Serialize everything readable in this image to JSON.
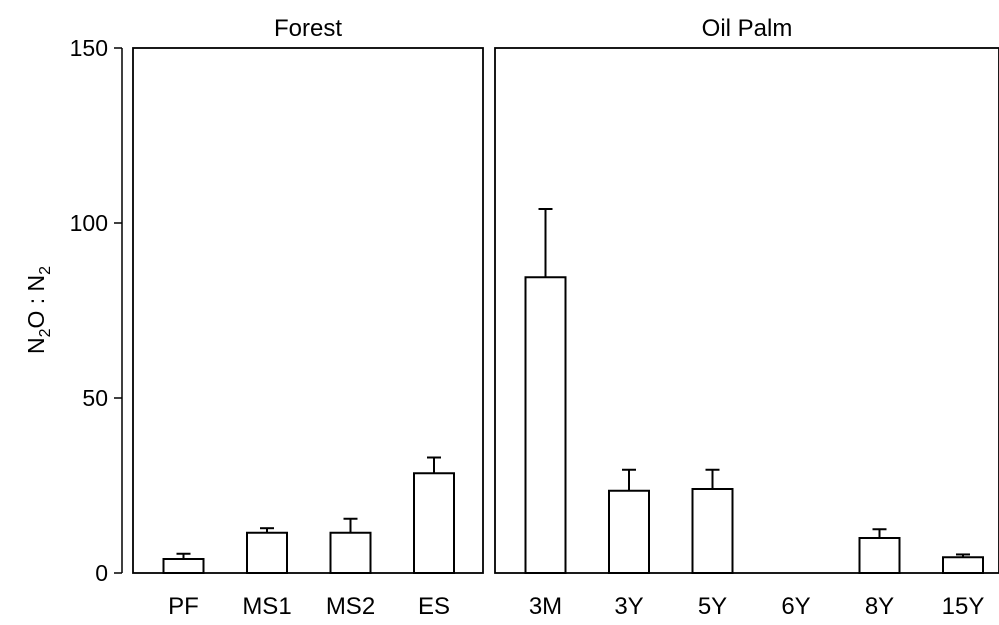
{
  "chart_data": {
    "type": "bar",
    "ylabel": {
      "base": "N",
      "sub1": "2",
      "mid": "O : N",
      "sub2": "2"
    },
    "ylim": [
      0,
      150
    ],
    "yticks": [
      0,
      50,
      100,
      150
    ],
    "grid": false,
    "panels": [
      {
        "title": "Forest",
        "categories": [
          "PF",
          "MS1",
          "MS2",
          "ES"
        ],
        "values": [
          4,
          11.5,
          11.5,
          28.5
        ],
        "error_upper": [
          5.5,
          12.8,
          15.5,
          33
        ]
      },
      {
        "title": "Oil Palm",
        "categories": [
          "3M",
          "3Y",
          "5Y",
          "6Y",
          "8Y",
          "15Y"
        ],
        "values": [
          84.5,
          23.5,
          24,
          null,
          10,
          4.5
        ],
        "error_upper": [
          104,
          29.5,
          29.5,
          null,
          12.5,
          5.3
        ]
      }
    ]
  }
}
